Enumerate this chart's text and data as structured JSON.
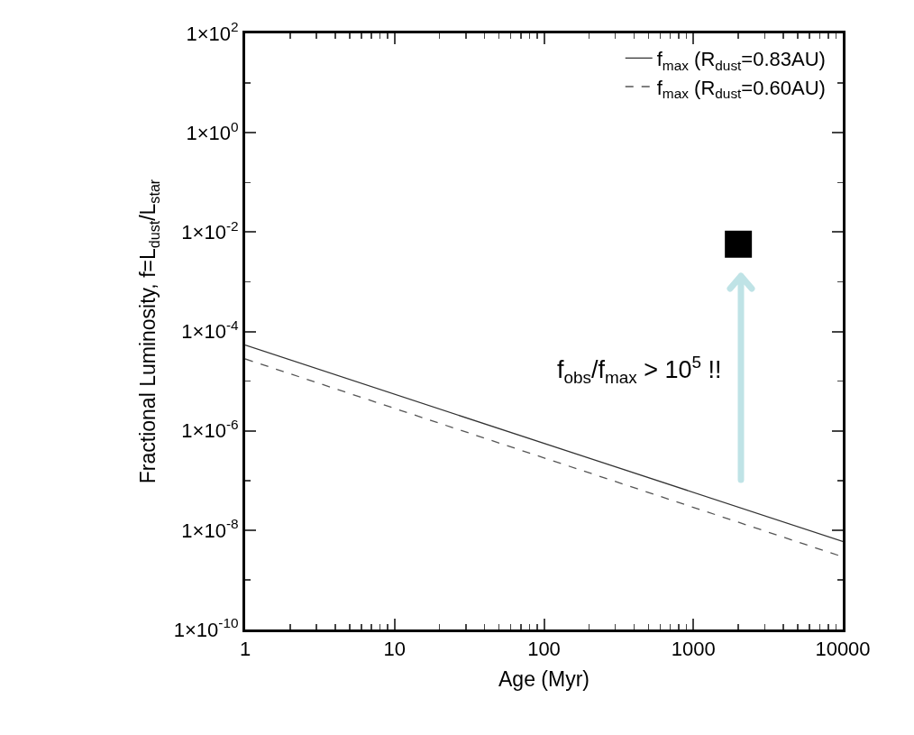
{
  "chart_data": {
    "type": "line",
    "xlabel": "Age (Myr)",
    "ylabel": "Fractional Luminosity, f=L$_{dust}$/L$_{star}$",
    "log": "xy",
    "grid": false,
    "legend": "top right",
    "xlim": [
      1,
      10000
    ],
    "xticks": [
      1,
      10,
      100,
      1000,
      10000
    ],
    "ylim": [
      1e-10,
      100
    ],
    "yticks": [
      {
        "value": 1e-10,
        "label": "1×10$^{-10}$"
      },
      {
        "value": 1e-08,
        "label": "1×10$^{-8}$"
      },
      {
        "value": 1e-06,
        "label": "1×10$^{-6}$"
      },
      {
        "value": 0.0001,
        "label": "1×10$^{-4}$"
      },
      {
        "value": 0.01,
        "label": "1×10$^{-2}$"
      },
      {
        "value": 1,
        "label": "1×10$^{0}$"
      },
      {
        "value": 100,
        "label": "1×10$^{2}$"
      }
    ],
    "series": [
      {
        "name": "f$_{max}$ (R$_{dust}$=0.83AU)",
        "color": "#333333",
        "line_style": "solid",
        "marker": "none",
        "x": [
          1,
          10000
        ],
        "values": [
          5.3e-05,
          5.9e-09
        ]
      },
      {
        "name": "f$_{max}$ (R$_{dust}$=0.60AU)",
        "color": "#555555",
        "line_style": "dashed",
        "marker": "none",
        "x": [
          1,
          10000
        ],
        "values": [
          2.8e-05,
          2.9e-09
        ]
      },
      {
        "type": "scatter",
        "color": "#000000",
        "marker": "square",
        "x": [
          2000
        ],
        "values": [
          0.0057
        ]
      }
    ],
    "annotations": [
      "f$_{obs}$/f$_{max}$ > 10$^{5}$ !!"
    ]
  }
}
